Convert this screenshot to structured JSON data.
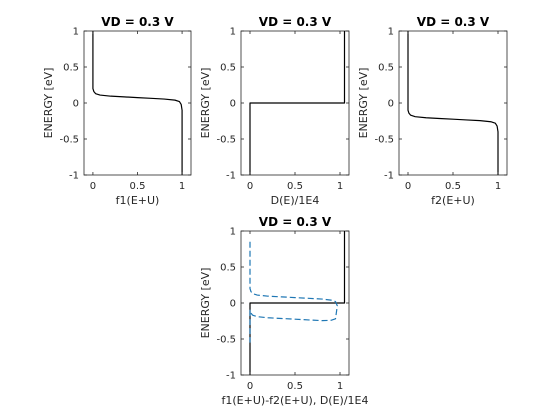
{
  "chart_data": [
    {
      "type": "line",
      "title": "VD = 0.3 V",
      "xlabel": "f1(E+U)",
      "ylabel": "ENERGY  [eV]",
      "xlim": [
        -0.1,
        1.1
      ],
      "ylim": [
        -1,
        1
      ],
      "xticks": [
        "0",
        "0.5",
        "1"
      ],
      "yticks": [
        "1",
        "0.5",
        "0",
        "-0.5",
        "-1"
      ],
      "grid": false,
      "series": [
        {
          "style": "solid",
          "color": "#000000",
          "x": [
            0.0,
            0.0,
            0.01,
            0.03,
            0.08,
            0.2,
            0.35,
            0.5,
            0.65,
            0.8,
            0.92,
            0.97,
            0.99,
            1.0,
            1.0
          ],
          "y": [
            1.0,
            0.2,
            0.16,
            0.13,
            0.11,
            0.095,
            0.085,
            0.075,
            0.065,
            0.055,
            0.04,
            0.02,
            -0.02,
            -0.1,
            -1.0
          ]
        }
      ]
    },
    {
      "type": "line",
      "title": "VD = 0.3 V",
      "xlabel": "D(E)/1E4",
      "ylabel": "ENERGY  [eV]",
      "xlim": [
        -0.1,
        1.1
      ],
      "ylim": [
        -1,
        1
      ],
      "xticks": [
        "0",
        "0.5",
        "1"
      ],
      "yticks": [
        "1",
        "0.5",
        "0",
        "-0.5",
        "-1"
      ],
      "grid": false,
      "series": [
        {
          "style": "solid",
          "color": "#000000",
          "x": [
            0.0,
            0.0,
            1.05,
            1.05
          ],
          "y": [
            -1.0,
            0.0,
            0.0,
            1.0
          ]
        }
      ]
    },
    {
      "type": "line",
      "title": "VD = 0.3 V",
      "xlabel": "f2(E+U)",
      "ylabel": "ENERGY  [eV]",
      "xlim": [
        -0.1,
        1.1
      ],
      "ylim": [
        -1,
        1
      ],
      "xticks": [
        "0",
        "0.5",
        "1"
      ],
      "yticks": [
        "1",
        "0.5",
        "0",
        "-0.5",
        "-1"
      ],
      "grid": false,
      "series": [
        {
          "style": "solid",
          "color": "#000000",
          "x": [
            0.0,
            0.0,
            0.01,
            0.03,
            0.08,
            0.2,
            0.35,
            0.5,
            0.65,
            0.8,
            0.92,
            0.97,
            0.99,
            1.0,
            1.0
          ],
          "y": [
            1.0,
            -0.1,
            -0.14,
            -0.17,
            -0.19,
            -0.205,
            -0.215,
            -0.225,
            -0.235,
            -0.245,
            -0.26,
            -0.28,
            -0.32,
            -0.4,
            -1.0
          ]
        }
      ]
    },
    {
      "type": "line",
      "title": "VD = 0.3 V",
      "xlabel": "f1(E+U)-f2(E+U), D(E)/1E4",
      "ylabel": "ENERGY  [eV]",
      "xlim": [
        -0.1,
        1.1
      ],
      "ylim": [
        -1,
        1
      ],
      "xticks": [
        "0",
        "0.5",
        "1"
      ],
      "yticks": [
        "1",
        "0.5",
        "0",
        "-0.5",
        "-1"
      ],
      "grid": false,
      "series": [
        {
          "style": "solid",
          "color": "#000000",
          "x": [
            0.0,
            0.0,
            1.05,
            1.05
          ],
          "y": [
            -1.0,
            0.0,
            0.0,
            1.0
          ]
        },
        {
          "style": "dashed",
          "color": "#1f77b4",
          "x": [
            0.0,
            0.0,
            0.01,
            0.03,
            0.08,
            0.2,
            0.35,
            0.5,
            0.65,
            0.8,
            0.9,
            0.95,
            0.97,
            0.95,
            0.9,
            0.8,
            0.65,
            0.5,
            0.35,
            0.2,
            0.08,
            0.03,
            0.01,
            0.0,
            0.0
          ],
          "y": [
            0.85,
            0.2,
            0.16,
            0.13,
            0.11,
            0.095,
            0.085,
            0.075,
            0.065,
            0.055,
            0.04,
            0.02,
            -0.04,
            -0.22,
            -0.24,
            -0.245,
            -0.235,
            -0.225,
            -0.215,
            -0.205,
            -0.19,
            -0.17,
            -0.14,
            -0.1,
            -0.55
          ]
        }
      ]
    }
  ]
}
